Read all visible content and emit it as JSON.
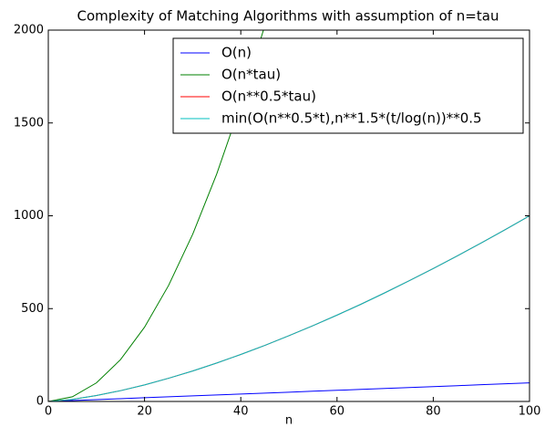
{
  "chart_data": {
    "type": "line",
    "title": "Complexity of Matching Algorithms with assumption of n=tau",
    "x_label": "n",
    "x": [
      0,
      5,
      10,
      15,
      20,
      25,
      30,
      35,
      40,
      45,
      50,
      55,
      60,
      65,
      70,
      75,
      80,
      85,
      90,
      95,
      100
    ],
    "series": [
      {
        "name": "O(n)",
        "color": "#0000ff",
        "values": [
          0,
          5,
          10,
          15,
          20,
          25,
          30,
          35,
          40,
          45,
          50,
          55,
          60,
          65,
          70,
          75,
          80,
          85,
          90,
          95,
          100
        ]
      },
      {
        "name": "O(n*tau)",
        "color": "#008000",
        "values": [
          0,
          25,
          100,
          225,
          400,
          625,
          900,
          1225,
          1600,
          2025,
          null,
          null,
          null,
          null,
          null,
          null,
          null,
          null,
          null,
          null,
          null
        ]
      },
      {
        "name": "O(n**0.5*tau)",
        "color": "#ff0000",
        "values": [
          0,
          11,
          32,
          58,
          89,
          125,
          164,
          207,
          253,
          302,
          354,
          408,
          465,
          524,
          586,
          650,
          716,
          784,
          854,
          926,
          1000
        ]
      },
      {
        "name": "min(O(n**0.5*t),n**1.5*(t/log(n))**0.5",
        "color": "#00bfbf",
        "values": [
          0,
          11,
          32,
          58,
          89,
          125,
          164,
          207,
          253,
          302,
          354,
          408,
          465,
          524,
          586,
          650,
          716,
          784,
          854,
          926,
          1000
        ]
      }
    ],
    "xlim": [
      0,
      100
    ],
    "xticks": [
      0,
      20,
      40,
      60,
      80,
      100
    ],
    "ylim": [
      0,
      2000
    ],
    "yticks": [
      0,
      500,
      1000,
      1500,
      2000
    ],
    "grid": false,
    "legend": "upper right"
  }
}
